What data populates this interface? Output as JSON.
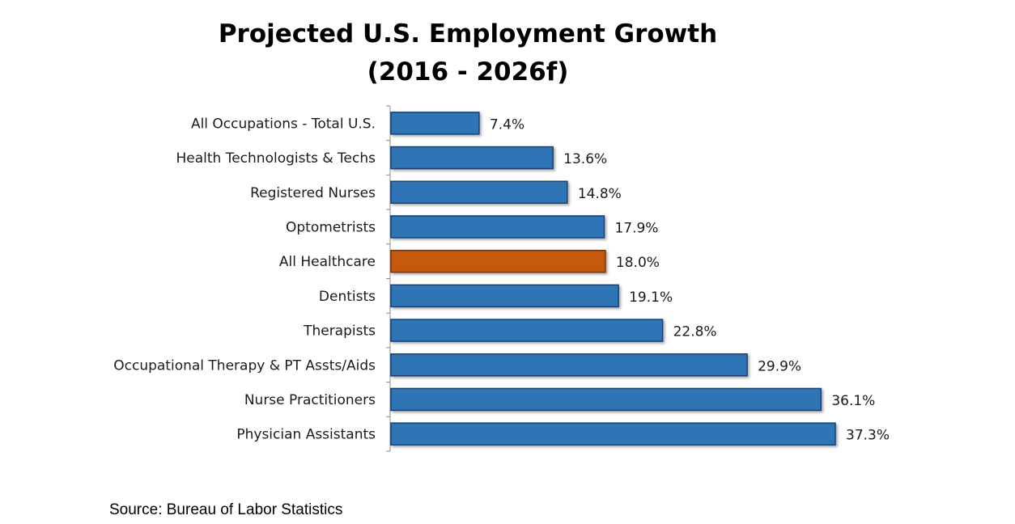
{
  "chart_data": {
    "type": "bar",
    "orientation": "horizontal",
    "title": "Projected U.S. Employment Growth",
    "subtitle": "(2016 - 2026f)",
    "categories": [
      "All Occupations - Total U.S.",
      "Health Technologists & Techs",
      "Registered Nurses",
      "Optometrists",
      "All Healthcare",
      "Dentists",
      "Therapists",
      "Occupational Therapy & PT Assts/Aids",
      "Nurse Practitioners",
      "Physician Assistants"
    ],
    "values": [
      7.4,
      13.6,
      14.8,
      17.9,
      18.0,
      19.1,
      22.8,
      29.9,
      36.1,
      37.3
    ],
    "value_labels": [
      "7.4%",
      "13.6%",
      "14.8%",
      "17.9%",
      "18.0%",
      "19.1%",
      "22.8%",
      "29.9%",
      "36.1%",
      "37.3%"
    ],
    "highlight_category": "All Healthcare",
    "xlabel": "",
    "ylabel": "",
    "xlim": [
      0,
      40
    ],
    "grid": false,
    "legend": "none",
    "colors": {
      "bar": "#2E74B5",
      "bar_border": "#1B3F73",
      "highlight": "#C55A11",
      "highlight_border": "#7A3008"
    }
  },
  "source": "Source: Bureau of Labor Statistics"
}
